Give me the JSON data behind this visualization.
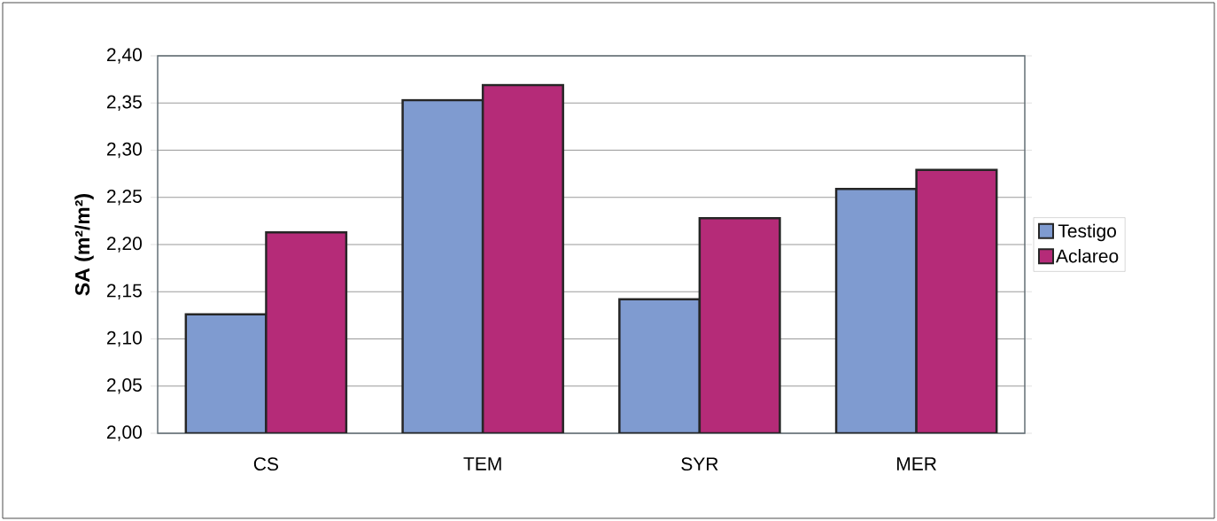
{
  "chart_data": {
    "type": "bar",
    "ylabel": "SA (m²/m²)",
    "categories": [
      "CS",
      "TEM",
      "SYR",
      "MER"
    ],
    "series": [
      {
        "name": "Testigo",
        "color": "#7f9bd0",
        "values": [
          2.126,
          2.353,
          2.142,
          2.259
        ]
      },
      {
        "name": "Aclareo",
        "color": "#b52b78",
        "values": [
          2.213,
          2.369,
          2.228,
          2.279
        ]
      }
    ],
    "ylim": [
      2.0,
      2.4
    ],
    "yticks": [
      {
        "value": 2.0,
        "label": "2,00"
      },
      {
        "value": 2.05,
        "label": "2,05"
      },
      {
        "value": 2.1,
        "label": "2,10"
      },
      {
        "value": 2.15,
        "label": "2,15"
      },
      {
        "value": 2.2,
        "label": "2,20"
      },
      {
        "value": 2.25,
        "label": "2,25"
      },
      {
        "value": 2.3,
        "label": "2,30"
      },
      {
        "value": 2.35,
        "label": "2,35"
      },
      {
        "value": 2.4,
        "label": "2,40"
      }
    ],
    "grid": "y",
    "legend": "right"
  }
}
